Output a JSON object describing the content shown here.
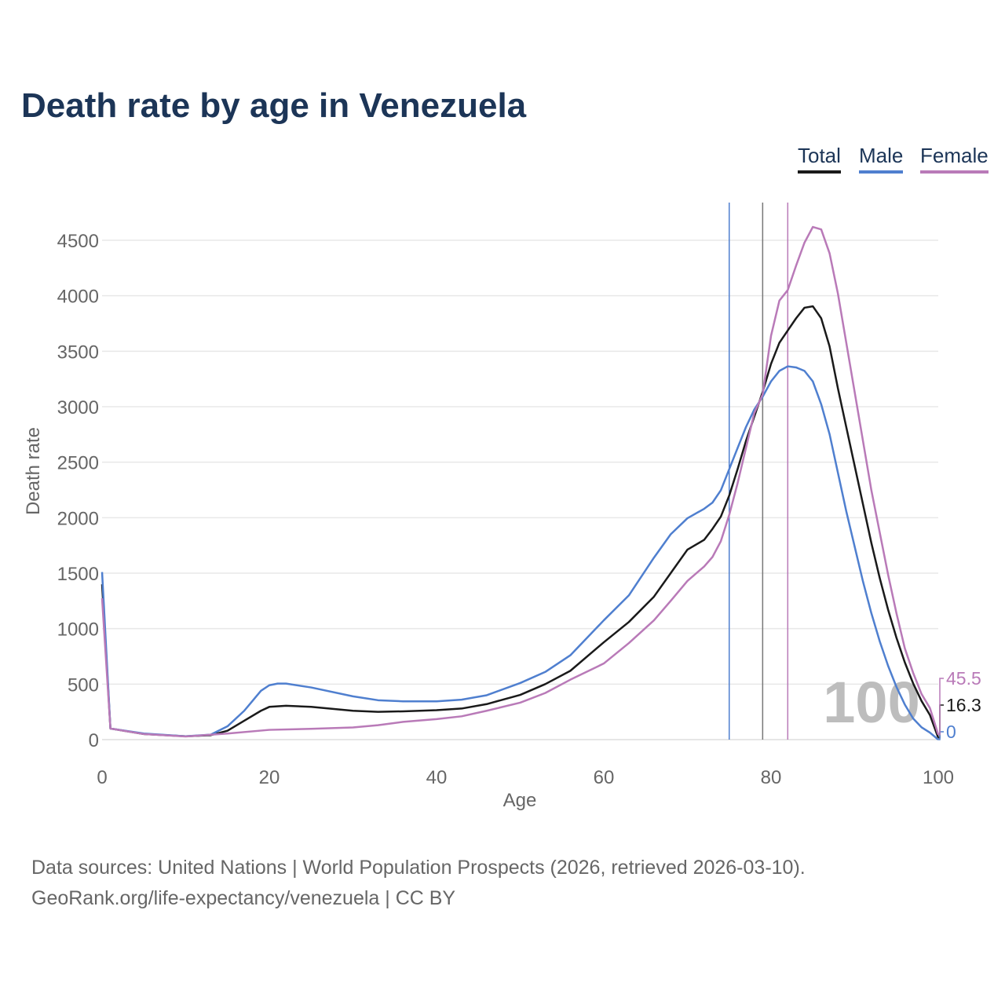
{
  "chart_data": {
    "type": "line",
    "title": "Death rate by age in Venezuela",
    "xlabel": "Age",
    "ylabel": "Death rate",
    "xlim": [
      0,
      100
    ],
    "ylim": [
      0,
      4800
    ],
    "xticks": [
      0,
      20,
      40,
      60,
      80,
      100
    ],
    "yticks": [
      0,
      500,
      1000,
      1500,
      2000,
      2500,
      3000,
      3500,
      4000,
      4500
    ],
    "grid": true,
    "legend_position": "top-right",
    "watermark": "100",
    "series": [
      {
        "name": "Total",
        "color": "#1a1a1a",
        "life_expectancy_line": 79,
        "end_label": "16.3",
        "points": [
          [
            0,
            1400
          ],
          [
            1,
            100
          ],
          [
            5,
            50
          ],
          [
            10,
            30
          ],
          [
            13,
            40
          ],
          [
            15,
            80
          ],
          [
            17,
            170
          ],
          [
            19,
            260
          ],
          [
            20,
            295
          ],
          [
            22,
            305
          ],
          [
            25,
            295
          ],
          [
            30,
            260
          ],
          [
            33,
            250
          ],
          [
            36,
            255
          ],
          [
            40,
            265
          ],
          [
            43,
            280
          ],
          [
            46,
            320
          ],
          [
            50,
            403
          ],
          [
            53,
            500
          ],
          [
            56,
            620
          ],
          [
            60,
            877
          ],
          [
            63,
            1060
          ],
          [
            66,
            1288
          ],
          [
            68,
            1500
          ],
          [
            70,
            1712
          ],
          [
            72,
            1800
          ],
          [
            73,
            1899
          ],
          [
            74,
            2010
          ],
          [
            75,
            2199
          ],
          [
            76,
            2437
          ],
          [
            77,
            2690
          ],
          [
            78,
            2911
          ],
          [
            79,
            3133
          ],
          [
            80,
            3386
          ],
          [
            81,
            3576
          ],
          [
            82,
            3687
          ],
          [
            83,
            3797
          ],
          [
            84,
            3892
          ],
          [
            85,
            3905
          ],
          [
            86,
            3797
          ],
          [
            87,
            3544
          ],
          [
            88,
            3165
          ],
          [
            89,
            2816
          ],
          [
            90,
            2468
          ],
          [
            91,
            2120
          ],
          [
            92,
            1772
          ],
          [
            93,
            1456
          ],
          [
            94,
            1171
          ],
          [
            95,
            918
          ],
          [
            96,
            696
          ],
          [
            97,
            506
          ],
          [
            98,
            348
          ],
          [
            99,
            222
          ],
          [
            100,
            16.3
          ]
        ]
      },
      {
        "name": "Male",
        "color": "#4f7fcf",
        "life_expectancy_line": 75,
        "end_label": "0",
        "points": [
          [
            0,
            1510
          ],
          [
            1,
            100
          ],
          [
            5,
            55
          ],
          [
            10,
            30
          ],
          [
            13,
            45
          ],
          [
            15,
            120
          ],
          [
            17,
            260
          ],
          [
            18,
            350
          ],
          [
            19,
            440
          ],
          [
            20,
            490
          ],
          [
            21,
            505
          ],
          [
            22,
            505
          ],
          [
            25,
            470
          ],
          [
            30,
            390
          ],
          [
            33,
            355
          ],
          [
            36,
            345
          ],
          [
            40,
            345
          ],
          [
            43,
            360
          ],
          [
            46,
            400
          ],
          [
            50,
            510
          ],
          [
            53,
            610
          ],
          [
            56,
            760
          ],
          [
            60,
            1075
          ],
          [
            63,
            1300
          ],
          [
            66,
            1640
          ],
          [
            68,
            1850
          ],
          [
            70,
            1995
          ],
          [
            72,
            2080
          ],
          [
            73,
            2136
          ],
          [
            74,
            2247
          ],
          [
            75,
            2437
          ],
          [
            76,
            2627
          ],
          [
            77,
            2816
          ],
          [
            78,
            2975
          ],
          [
            79,
            3090
          ],
          [
            80,
            3228
          ],
          [
            81,
            3323
          ],
          [
            82,
            3364
          ],
          [
            83,
            3354
          ],
          [
            84,
            3323
          ],
          [
            85,
            3228
          ],
          [
            86,
            3022
          ],
          [
            87,
            2753
          ],
          [
            88,
            2405
          ],
          [
            89,
            2057
          ],
          [
            90,
            1740
          ],
          [
            91,
            1424
          ],
          [
            92,
            1139
          ],
          [
            93,
            886
          ],
          [
            94,
            665
          ],
          [
            95,
            475
          ],
          [
            96,
            316
          ],
          [
            97,
            190
          ],
          [
            98,
            111
          ],
          [
            99,
            63
          ],
          [
            100,
            0
          ]
        ]
      },
      {
        "name": "Female",
        "color": "#b97ab8",
        "life_expectancy_line": 82,
        "end_label": "45.5",
        "points": [
          [
            0,
            1274
          ],
          [
            1,
            100
          ],
          [
            5,
            50
          ],
          [
            10,
            28
          ],
          [
            15,
            55
          ],
          [
            20,
            88
          ],
          [
            25,
            97
          ],
          [
            30,
            110
          ],
          [
            33,
            130
          ],
          [
            36,
            160
          ],
          [
            40,
            185
          ],
          [
            43,
            210
          ],
          [
            46,
            260
          ],
          [
            50,
            333
          ],
          [
            53,
            420
          ],
          [
            56,
            540
          ],
          [
            60,
            686
          ],
          [
            63,
            870
          ],
          [
            66,
            1075
          ],
          [
            68,
            1250
          ],
          [
            70,
            1430
          ],
          [
            72,
            1560
          ],
          [
            73,
            1646
          ],
          [
            74,
            1788
          ],
          [
            75,
            2025
          ],
          [
            76,
            2310
          ],
          [
            77,
            2627
          ],
          [
            78,
            2943
          ],
          [
            79,
            3110
          ],
          [
            80,
            3639
          ],
          [
            81,
            3956
          ],
          [
            82,
            4051
          ],
          [
            83,
            4272
          ],
          [
            84,
            4478
          ],
          [
            85,
            4620
          ],
          [
            86,
            4598
          ],
          [
            87,
            4383
          ],
          [
            88,
            4019
          ],
          [
            89,
            3576
          ],
          [
            90,
            3133
          ],
          [
            91,
            2690
          ],
          [
            92,
            2247
          ],
          [
            93,
            1867
          ],
          [
            94,
            1487
          ],
          [
            95,
            1139
          ],
          [
            96,
            823
          ],
          [
            97,
            601
          ],
          [
            98,
            411
          ],
          [
            99,
            285
          ],
          [
            100,
            45.5
          ]
        ]
      }
    ]
  },
  "footer": {
    "line1": "Data sources: United Nations | World Population Prospects (2026, retrieved 2026-03-10).",
    "line2": "GeoRank.org/life-expectancy/venezuela | CC BY"
  }
}
